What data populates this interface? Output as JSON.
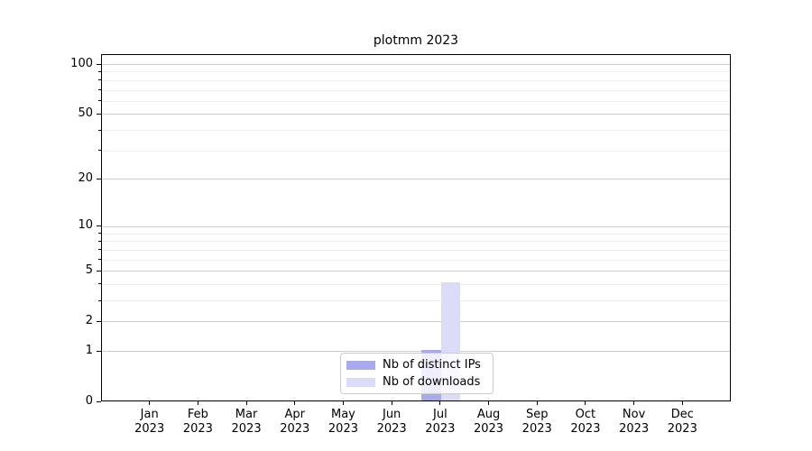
{
  "chart_data": {
    "type": "bar",
    "title": "plotmm 2023",
    "categories": [
      "Jan 2023",
      "Feb 2023",
      "Mar 2023",
      "Apr 2023",
      "May 2023",
      "Jun 2023",
      "Jul 2023",
      "Aug 2023",
      "Sep 2023",
      "Oct 2023",
      "Nov 2023",
      "Dec 2023"
    ],
    "series": [
      {
        "name": "Nb of distinct IPs",
        "color": "#a9a9ef",
        "values": [
          0,
          0,
          0,
          0,
          0,
          0,
          1,
          0,
          0,
          0,
          0,
          0
        ]
      },
      {
        "name": "Nb of downloads",
        "color": "#dcdcf8",
        "values": [
          0,
          0,
          0,
          0,
          0,
          0,
          4,
          0,
          0,
          0,
          0,
          0
        ]
      }
    ],
    "xlabel": "",
    "ylabel": "",
    "y_axis": {
      "scale": "log10(1+v)",
      "major_ticks": [
        0,
        1,
        2,
        5,
        10,
        20,
        50,
        100
      ],
      "minor_ticks": [
        3,
        4,
        6,
        7,
        8,
        9,
        30,
        40,
        60,
        70,
        80,
        90
      ],
      "ylim": [
        0,
        114
      ]
    },
    "grid": "both",
    "legend_position": "lower center"
  }
}
